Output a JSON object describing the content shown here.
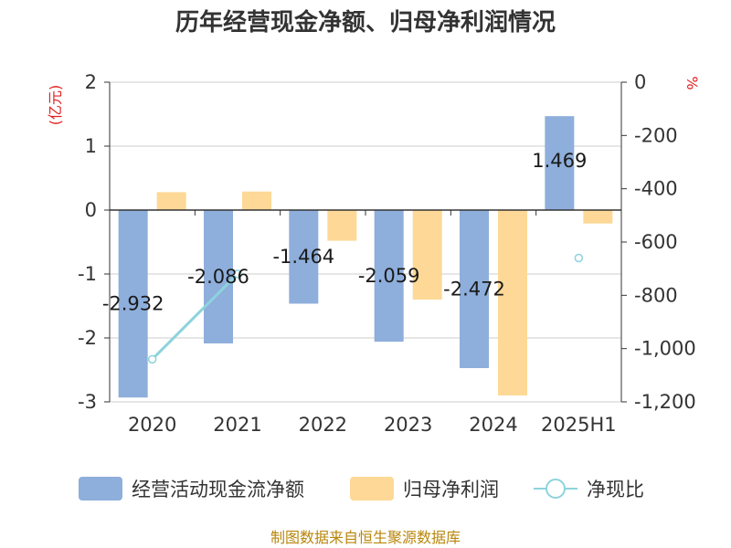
{
  "chart_data": {
    "type": "bar",
    "title": "历年经营现金净额、归母净利润情况",
    "categories": [
      "2020",
      "2021",
      "2022",
      "2023",
      "2024",
      "2025H1"
    ],
    "left_axis": {
      "unit": "(亿元)",
      "min": -3,
      "max": 2,
      "ticks": [
        2,
        1,
        0,
        -1,
        -2,
        -3
      ],
      "tick_labels": [
        "2",
        "1",
        "0",
        "-1",
        "-2",
        "-3"
      ]
    },
    "right_axis": {
      "unit": "%",
      "min": -1200,
      "max": 0,
      "ticks": [
        0,
        -200,
        -400,
        -600,
        -800,
        -1000,
        -1200
      ],
      "tick_labels": [
        "0",
        "-200",
        "-400",
        "-600",
        "-800",
        "-1,000",
        "-1,200"
      ]
    },
    "series": [
      {
        "name": "经营活动现金流净额",
        "type": "bar",
        "axis": "left",
        "color": "#8eaedb",
        "values": [
          -2.932,
          -2.086,
          -1.464,
          -2.059,
          -2.472,
          1.469
        ],
        "labels": [
          "-2.932",
          "-2.086",
          "-1.464",
          "-2.059",
          "-2.472",
          "1.469"
        ]
      },
      {
        "name": "归母净利润",
        "type": "bar",
        "axis": "left",
        "color": "#fdd896",
        "values": [
          0.28,
          0.29,
          -0.48,
          -1.4,
          -2.9,
          -0.21
        ]
      },
      {
        "name": "净现比",
        "type": "line",
        "axis": "right",
        "color": "#8dd3dc",
        "values": [
          -1040,
          -720,
          null,
          null,
          null,
          -660
        ]
      }
    ],
    "grid": true,
    "legend": "bottom"
  },
  "footer": {
    "source": "制图数据来自恒生聚源数据库"
  }
}
